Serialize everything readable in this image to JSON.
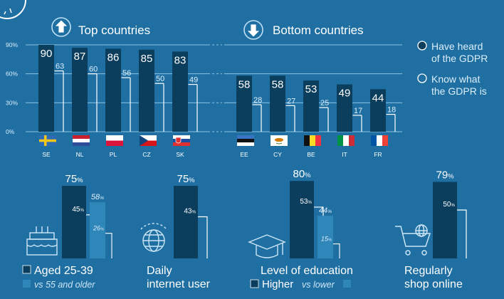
{
  "colors": {
    "background": "#1f6fa3",
    "dark_bar": "#0b3d5c",
    "mid_bar": "#2f86b8",
    "white": "#ffffff",
    "grid": "#8cc3e3",
    "text_light": "#dbeefa"
  },
  "header": {
    "top_label": "Top countries",
    "bottom_label": "Bottom countries",
    "top_icon": "arrow-up-icon",
    "bottom_icon": "arrow-down-icon"
  },
  "legend": {
    "have_heard_line1": "Have heard",
    "have_heard_line2": "of the GDPR",
    "know_line1": "Know what",
    "know_line2": "the GDPR is"
  },
  "chart_data": [
    {
      "type": "bar",
      "title": "",
      "group_labels": [
        "Top countries",
        "Bottom countries"
      ],
      "categories": [
        "SE",
        "NL",
        "PL",
        "CZ",
        "SK",
        "EE",
        "CY",
        "BE",
        "IT",
        "FR"
      ],
      "series": [
        {
          "name": "Have heard of the GDPR",
          "values": [
            90,
            87,
            86,
            85,
            83,
            58,
            58,
            53,
            49,
            44
          ]
        },
        {
          "name": "Know what the GDPR is",
          "values": [
            63,
            60,
            56,
            50,
            49,
            28,
            27,
            25,
            17,
            18
          ]
        }
      ],
      "yticks": [
        "0%",
        "30%",
        "60%",
        "90%"
      ],
      "ylim": [
        0,
        100
      ],
      "grid": true,
      "legend": "right",
      "flag_icons": [
        "flag-se-icon",
        "flag-nl-icon",
        "flag-pl-icon",
        "flag-cz-icon",
        "flag-sk-icon",
        "flag-ee-icon",
        "flag-cy-icon",
        "flag-be-icon",
        "flag-it-icon",
        "flag-fr-icon"
      ]
    },
    {
      "type": "bar",
      "groups": [
        {
          "label_line1": "Aged 25-39",
          "label_line2": "vs 55 and older",
          "icon": "birthday-cake-icon",
          "have_heard": "75",
          "know": "45",
          "compare_have_heard": "58",
          "compare_know": "26"
        },
        {
          "label_line1": "Daily",
          "label_line2": "internet user",
          "icon": "globe-icon",
          "have_heard": "75",
          "know": "43"
        },
        {
          "label_line1": "Level of education",
          "label_line2_strong": "Higher",
          "label_line2_rest": "vs lower",
          "icon": "graduation-cap-icon",
          "have_heard": "80",
          "know": "53",
          "compare_have_heard": "44",
          "compare_know": "15"
        },
        {
          "label_line1": "Regularly",
          "label_line2": "shop online",
          "icon": "shopping-cart-icon",
          "have_heard": "79",
          "know": "50"
        }
      ],
      "percent_sign": "%"
    }
  ]
}
